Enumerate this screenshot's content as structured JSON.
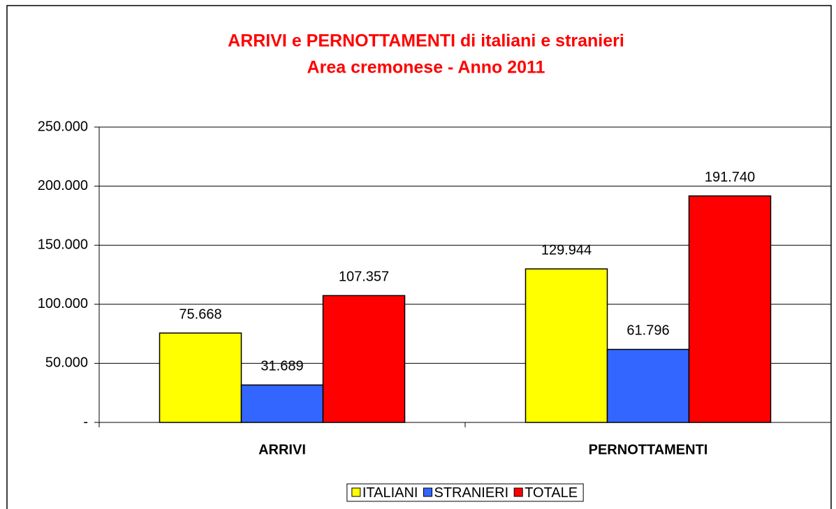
{
  "chart_data": {
    "type": "bar",
    "title": "ARRIVI e PERNOTTAMENTI di italiani e stranieri",
    "subtitle": "Area cremonese - Anno 2011",
    "categories": [
      "ARRIVI",
      "PERNOTTAMENTI"
    ],
    "series": [
      {
        "name": "ITALIANI",
        "color": "#ffff00",
        "values": [
          75668,
          129944
        ],
        "value_labels": [
          "75.668",
          "129.944"
        ]
      },
      {
        "name": "STRANIERI",
        "color": "#3366ff",
        "values": [
          31689,
          61796
        ],
        "value_labels": [
          "31.689",
          "61.796"
        ]
      },
      {
        "name": "TOTALE",
        "color": "#ff0000",
        "values": [
          107357,
          191740
        ],
        "value_labels": [
          "107.357",
          "191.740"
        ]
      }
    ],
    "ylim": [
      0,
      250000
    ],
    "yticks": [
      {
        "value": 0,
        "label": "-"
      },
      {
        "value": 50000,
        "label": "50.000"
      },
      {
        "value": 100000,
        "label": "100.000"
      },
      {
        "value": 150000,
        "label": "150.000"
      },
      {
        "value": 200000,
        "label": "200.000"
      },
      {
        "value": 250000,
        "label": "250.000"
      }
    ],
    "grid": true,
    "legend": "bottom"
  }
}
